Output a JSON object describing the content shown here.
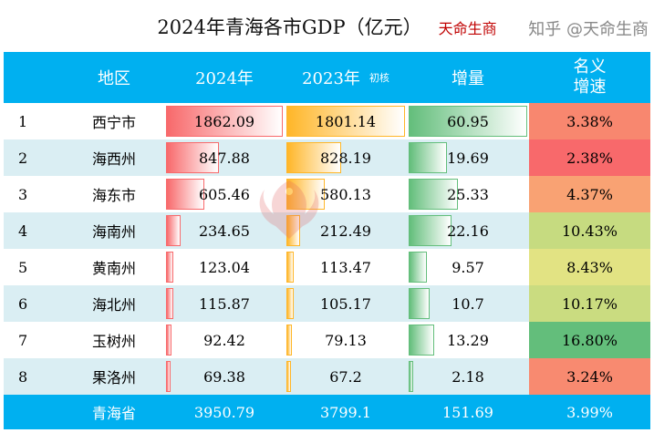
{
  "title": "2024年青海各市GDP（亿元）",
  "brand": "天命生商",
  "watermark": "天命生商",
  "zhihu_watermark": "知乎 @天命生商",
  "chart_data": {
    "type": "table",
    "headers": {
      "region": "地区",
      "y2024": "2024年",
      "y2023": "2023年",
      "y2023_note": "初核",
      "increment": "增量",
      "rate_line1": "名义",
      "rate_line2": "增速"
    },
    "rows": [
      {
        "rank": "1",
        "region": "西宁市",
        "y2024": 1862.09,
        "y2023": 1801.14,
        "increment": 60.95,
        "rate": "3.38%",
        "rate_color": "#f8876f"
      },
      {
        "rank": "2",
        "region": "海西州",
        "y2024": 847.88,
        "y2023": 828.19,
        "increment": 19.69,
        "rate": "2.38%",
        "rate_color": "#f8696b"
      },
      {
        "rank": "3",
        "region": "海东市",
        "y2024": 605.46,
        "y2023": 580.13,
        "increment": 25.33,
        "rate": "4.37%",
        "rate_color": "#f9a273"
      },
      {
        "rank": "4",
        "region": "海南州",
        "y2024": 234.65,
        "y2023": 212.49,
        "increment": 22.16,
        "rate": "10.43%",
        "rate_color": "#c6db80"
      },
      {
        "rank": "5",
        "region": "黄南州",
        "y2024": 123.04,
        "y2023": 113.47,
        "increment": 9.57,
        "rate": "8.43%",
        "rate_color": "#e2e383"
      },
      {
        "rank": "6",
        "region": "海北州",
        "y2024": 115.87,
        "y2023": 105.17,
        "increment": 10.7,
        "rate": "10.17%",
        "rate_color": "#cadc80"
      },
      {
        "rank": "7",
        "region": "玉树州",
        "y2024": 92.42,
        "y2023": 79.13,
        "increment": 13.29,
        "rate": "16.80%",
        "rate_color": "#63be7b"
      },
      {
        "rank": "8",
        "region": "果洛州",
        "y2024": 69.38,
        "y2023": 67.2,
        "increment": 2.18,
        "rate": "3.24%",
        "rate_color": "#f88a70"
      }
    ],
    "total": {
      "region": "青海省",
      "y2024": "3950.79",
      "y2023": "3799.1",
      "increment": "151.69",
      "rate": "3.99%"
    }
  },
  "colors": {
    "header": "#00b0f0",
    "alt_row": "#daeef3",
    "bar_2024": "#f8696b",
    "bar_2023": "#ffb628",
    "bar_inc": "#63be7b"
  }
}
